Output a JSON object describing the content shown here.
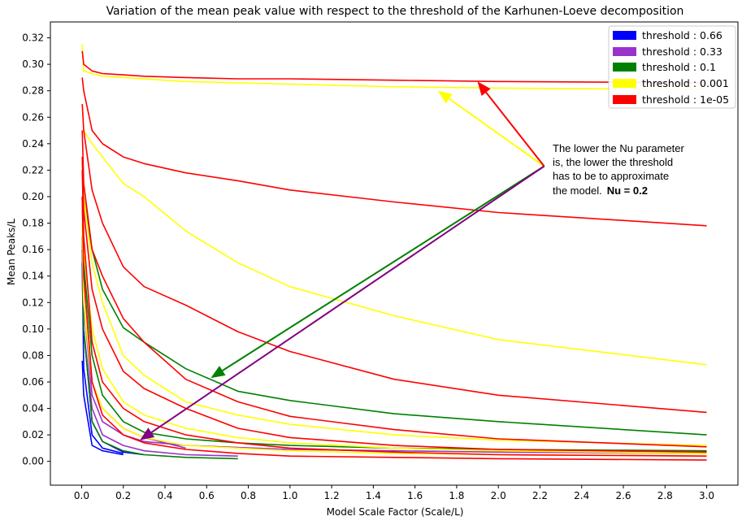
{
  "chart_data": {
    "type": "line",
    "title": "Variation of the mean peak value with respect to the threshold of the Karhunen-Loeve decomposition",
    "xlabel": "Model Scale Factor (Scale/L)",
    "ylabel": "Mean Peaks/L",
    "xlim": [
      -0.15,
      3.15
    ],
    "ylim": [
      -0.018,
      0.332
    ],
    "xticks": [
      "0.0",
      "0.2",
      "0.4",
      "0.6",
      "0.8",
      "1.0",
      "1.2",
      "1.4",
      "1.6",
      "1.8",
      "2.0",
      "2.2",
      "2.4",
      "2.6",
      "2.8",
      "3.0"
    ],
    "yticks": [
      "0.00",
      "0.02",
      "0.04",
      "0.06",
      "0.08",
      "0.10",
      "0.12",
      "0.14",
      "0.16",
      "0.18",
      "0.20",
      "0.22",
      "0.24",
      "0.26",
      "0.28",
      "0.30",
      "0.32"
    ],
    "grid": false,
    "legend_position": "top-right",
    "legend": [
      {
        "label": "threshold : 0.66",
        "color": "#0000ff"
      },
      {
        "label": "threshold : 0.33",
        "color": "#9932cc"
      },
      {
        "label": "threshold : 0.1",
        "color": "#008000"
      },
      {
        "label": "threshold : 0.001",
        "color": "#ffff00"
      },
      {
        "label": "threshold : 1e-05",
        "color": "#ff0000"
      }
    ],
    "series": [
      {
        "color": "#0000ff",
        "x": [
          0.003,
          0.01,
          0.05,
          0.1,
          0.2
        ],
        "y": [
          0.076,
          0.05,
          0.012,
          0.008,
          0.005
        ]
      },
      {
        "color": "#0000ff",
        "x": [
          0.003,
          0.01,
          0.05,
          0.1,
          0.2
        ],
        "y": [
          0.15,
          0.07,
          0.02,
          0.01,
          0.006
        ]
      },
      {
        "color": "#0000ff",
        "x": [
          0.003,
          0.01,
          0.05,
          0.1,
          0.2,
          0.3
        ],
        "y": [
          0.16,
          0.1,
          0.03,
          0.015,
          0.007,
          0.005
        ]
      },
      {
        "color": "#9932cc",
        "x": [
          0.003,
          0.01,
          0.05,
          0.1,
          0.2,
          0.3,
          0.5,
          0.75
        ],
        "y": [
          0.14,
          0.1,
          0.04,
          0.02,
          0.012,
          0.008,
          0.005,
          0.004
        ]
      },
      {
        "color": "#9932cc",
        "x": [
          0.003,
          0.01,
          0.05,
          0.1,
          0.2,
          0.3,
          0.5,
          1.0,
          1.5,
          2.0,
          3.0
        ],
        "y": [
          0.16,
          0.12,
          0.05,
          0.03,
          0.02,
          0.015,
          0.012,
          0.009,
          0.008,
          0.007,
          0.006
        ]
      },
      {
        "color": "#9932cc",
        "x": [
          0.003,
          0.01,
          0.05,
          0.1,
          0.2,
          0.3,
          0.5
        ],
        "y": [
          0.2,
          0.14,
          0.06,
          0.04,
          0.025,
          0.018,
          0.01
        ]
      },
      {
        "color": "#008000",
        "x": [
          0.003,
          0.01,
          0.05,
          0.1,
          0.2,
          0.3,
          0.5,
          0.75,
          1.0,
          1.5,
          2.0,
          3.0
        ],
        "y": [
          0.23,
          0.2,
          0.16,
          0.13,
          0.101,
          0.09,
          0.07,
          0.053,
          0.046,
          0.036,
          0.03,
          0.02
        ]
      },
      {
        "color": "#008000",
        "x": [
          0.003,
          0.01,
          0.05,
          0.1,
          0.2,
          0.3,
          0.5,
          0.75,
          1.0,
          1.5,
          2.0,
          3.0
        ],
        "y": [
          0.2,
          0.15,
          0.08,
          0.05,
          0.03,
          0.022,
          0.017,
          0.014,
          0.012,
          0.01,
          0.009,
          0.008
        ]
      },
      {
        "color": "#008000",
        "x": [
          0.003,
          0.01,
          0.05,
          0.1,
          0.2,
          0.3,
          0.5,
          0.75
        ],
        "y": [
          0.17,
          0.1,
          0.03,
          0.015,
          0.008,
          0.005,
          0.003,
          0.002
        ]
      },
      {
        "color": "#ffff00",
        "x": [
          0.003,
          0.01,
          0.05,
          0.1,
          0.2,
          0.5,
          1.0,
          1.5,
          2.0,
          3.0
        ],
        "y": [
          0.315,
          0.295,
          0.293,
          0.291,
          0.29,
          0.287,
          0.285,
          0.283,
          0.282,
          0.281
        ]
      },
      {
        "color": "#ffff00",
        "x": [
          0.003,
          0.01,
          0.05,
          0.1,
          0.2,
          0.3,
          0.5,
          0.75,
          1.0,
          1.5,
          2.0,
          3.0
        ],
        "y": [
          0.27,
          0.25,
          0.24,
          0.23,
          0.21,
          0.2,
          0.174,
          0.15,
          0.132,
          0.11,
          0.092,
          0.073
        ]
      },
      {
        "color": "#ffff00",
        "x": [
          0.003,
          0.01,
          0.05,
          0.1,
          0.2,
          0.3,
          0.5,
          0.75,
          1.0,
          1.5,
          2.0,
          3.0
        ],
        "y": [
          0.22,
          0.2,
          0.15,
          0.12,
          0.08,
          0.065,
          0.045,
          0.035,
          0.028,
          0.02,
          0.016,
          0.012
        ]
      },
      {
        "color": "#ffff00",
        "x": [
          0.003,
          0.01,
          0.05,
          0.1,
          0.2,
          0.3,
          0.5,
          0.75,
          1.0,
          1.5,
          2.0,
          3.0
        ],
        "y": [
          0.2,
          0.16,
          0.1,
          0.07,
          0.045,
          0.035,
          0.025,
          0.018,
          0.014,
          0.01,
          0.008,
          0.006
        ]
      },
      {
        "color": "#ffff00",
        "x": [
          0.003,
          0.01,
          0.05,
          0.1,
          0.2,
          0.3,
          0.5,
          1.0,
          1.5,
          2.0,
          3.0
        ],
        "y": [
          0.18,
          0.12,
          0.06,
          0.04,
          0.025,
          0.018,
          0.012,
          0.008,
          0.006,
          0.005,
          0.004
        ]
      },
      {
        "color": "#ff0000",
        "x": [
          0.003,
          0.01,
          0.05,
          0.1,
          0.2,
          0.3,
          0.5,
          0.75,
          1.0,
          1.5,
          2.0,
          3.0
        ],
        "y": [
          0.31,
          0.3,
          0.295,
          0.293,
          0.292,
          0.291,
          0.29,
          0.289,
          0.289,
          0.288,
          0.287,
          0.286
        ]
      },
      {
        "color": "#ff0000",
        "x": [
          0.003,
          0.01,
          0.05,
          0.1,
          0.2,
          0.3,
          0.5,
          0.75,
          1.0,
          1.5,
          2.0,
          3.0
        ],
        "y": [
          0.29,
          0.28,
          0.25,
          0.24,
          0.23,
          0.225,
          0.218,
          0.212,
          0.205,
          0.196,
          0.188,
          0.178
        ]
      },
      {
        "color": "#ff0000",
        "x": [
          0.003,
          0.01,
          0.05,
          0.1,
          0.2,
          0.3,
          0.5,
          0.75,
          1.0,
          1.5,
          2.0,
          3.0
        ],
        "y": [
          0.27,
          0.25,
          0.205,
          0.18,
          0.147,
          0.132,
          0.118,
          0.098,
          0.083,
          0.062,
          0.05,
          0.037
        ]
      },
      {
        "color": "#ff0000",
        "x": [
          0.003,
          0.01,
          0.05,
          0.1,
          0.2,
          0.3,
          0.5,
          0.75,
          1.0,
          1.5,
          2.0,
          3.0
        ],
        "y": [
          0.25,
          0.21,
          0.16,
          0.14,
          0.108,
          0.09,
          0.062,
          0.045,
          0.034,
          0.024,
          0.017,
          0.011
        ]
      },
      {
        "color": "#ff0000",
        "x": [
          0.003,
          0.01,
          0.05,
          0.1,
          0.2,
          0.3,
          0.5,
          0.75,
          1.0,
          1.5,
          2.0,
          3.0
        ],
        "y": [
          0.23,
          0.19,
          0.13,
          0.1,
          0.068,
          0.055,
          0.04,
          0.025,
          0.018,
          0.012,
          0.009,
          0.007
        ]
      },
      {
        "color": "#ff0000",
        "x": [
          0.003,
          0.01,
          0.05,
          0.1,
          0.2,
          0.3,
          0.5,
          0.75,
          1.0,
          1.5,
          2.0,
          3.0
        ],
        "y": [
          0.22,
          0.17,
          0.09,
          0.06,
          0.04,
          0.03,
          0.02,
          0.014,
          0.01,
          0.007,
          0.005,
          0.004
        ]
      },
      {
        "color": "#ff0000",
        "x": [
          0.003,
          0.01,
          0.05,
          0.1,
          0.2,
          0.3,
          0.5,
          0.75,
          1.0,
          1.5,
          2.0,
          3.0
        ],
        "y": [
          0.2,
          0.14,
          0.06,
          0.035,
          0.02,
          0.014,
          0.009,
          0.006,
          0.004,
          0.003,
          0.002,
          0.001
        ]
      }
    ],
    "annotations": {
      "lines": [
        "The lower the Nu parameter",
        "is, the lower the threshold",
        "has to be to approximate",
        "the model."
      ],
      "bold": "Nu = 0.2",
      "arrows": [
        {
          "color": "#ffff00",
          "from": [
            2.22,
            0.223
          ],
          "to": [
            1.71,
            0.28
          ]
        },
        {
          "color": "#ff0000",
          "from": [
            2.22,
            0.223
          ],
          "to": [
            1.9,
            0.287
          ]
        },
        {
          "color": "#008000",
          "from": [
            2.22,
            0.223
          ],
          "to": [
            0.62,
            0.063
          ]
        },
        {
          "color": "#800080",
          "from": [
            2.22,
            0.223
          ],
          "to": [
            0.28,
            0.016
          ]
        }
      ]
    }
  }
}
